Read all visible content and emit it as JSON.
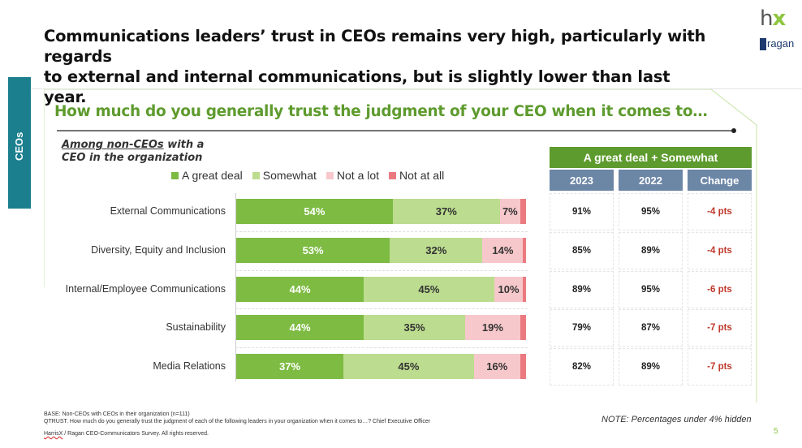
{
  "slide": {
    "title_line1": "Communications leaders’ trust in CEOs remains very high, particularly with regards",
    "title_line2": "to external and internal communications, but is slightly lower than last year.",
    "side_tab": "CEOs",
    "logo_top": "hx",
    "logo_brand": "ragan",
    "page_number": "5"
  },
  "chart_data": {
    "type": "bar",
    "orientation": "horizontal-stacked-100",
    "title": "How much do you generally trust the judgment of your CEO when it comes to…",
    "subgroup_underlined": "Among non-CEOs",
    "subgroup_rest_line1": " with a",
    "subgroup_line2": "CEO in the organization",
    "categories": [
      "External Communications",
      "Diversity, Equity and Inclusion",
      "Internal/Employee Communications",
      "Sustainability",
      "Media Relations"
    ],
    "series": [
      {
        "name": "A great deal",
        "color": "#7dbb42",
        "label_color": "#ffffff",
        "values": [
          54,
          53,
          44,
          44,
          37
        ]
      },
      {
        "name": "Somewhat",
        "color": "#bcdc8f",
        "label_color": "#333333",
        "values": [
          37,
          32,
          45,
          35,
          45
        ]
      },
      {
        "name": "Not a lot",
        "color": "#f7c8cb",
        "label_color": "#333333",
        "values": [
          7,
          14,
          10,
          19,
          16
        ]
      },
      {
        "name": "Not at all",
        "color": "#ea7a80",
        "label_color": "#333333",
        "values": [
          2,
          1,
          1,
          2,
          2
        ]
      }
    ],
    "hide_labels_below": 4,
    "legend_position": "top"
  },
  "table": {
    "header": "A great deal + Somewhat",
    "columns": [
      "2023",
      "2022",
      "Change"
    ],
    "rows": [
      [
        "91%",
        "95%",
        "-4 pts"
      ],
      [
        "85%",
        "89%",
        "-4 pts"
      ],
      [
        "89%",
        "95%",
        "-6 pts"
      ],
      [
        "79%",
        "87%",
        "-7 pts"
      ],
      [
        "82%",
        "89%",
        "-7 pts"
      ]
    ]
  },
  "footer": {
    "base": "BASE: Non-CEOs with CEOs in their organization (n=111)",
    "question": "QTRUST. How much do you generally trust the judgment of each of the following leaders in your organization when it comes to…? Chief Executive Officer",
    "brand_word": "HarrisX",
    "copyright": " / Ragan CEO-Communicators Survey. All rights reserved.",
    "note": "NOTE: Percentages under 4% hidden"
  }
}
